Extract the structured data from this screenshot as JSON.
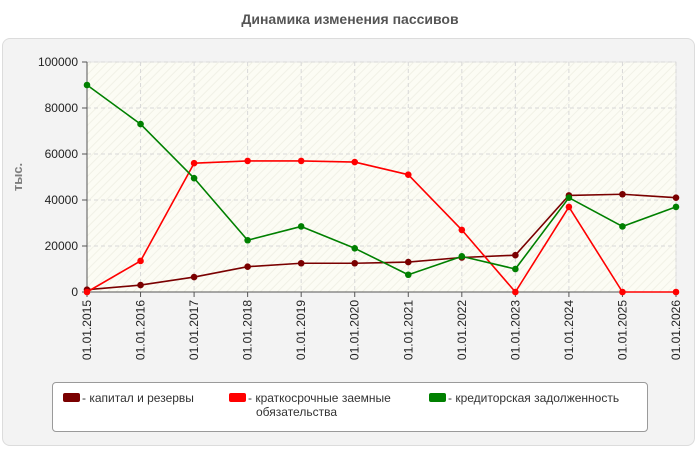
{
  "chart_data": {
    "type": "line",
    "title": "Динамика изменения пассивов",
    "ylabel": "тыс.",
    "xlabel": "",
    "ylim": [
      0,
      100000
    ],
    "yticks": [
      "0",
      "20000",
      "40000",
      "60000",
      "80000",
      "100000"
    ],
    "grid": true,
    "legend_position": "bottom",
    "categories": [
      "01.01.2015",
      "01.01.2016",
      "01.01.2017",
      "01.01.2018",
      "01.01.2019",
      "01.01.2020",
      "01.01.2021",
      "01.01.2022",
      "01.01.2023",
      "01.01.2024",
      "01.01.2025",
      "01.01.2026"
    ],
    "series": [
      {
        "name": "капитал и резервы",
        "color": "#7a0000",
        "values": [
          1000,
          3000,
          6500,
          11000,
          12500,
          12500,
          13000,
          15000,
          16000,
          42000,
          42500,
          41000
        ]
      },
      {
        "name": "краткосрочные заемные обязательства",
        "color": "#ff0000",
        "values": [
          0,
          13500,
          56000,
          57000,
          57000,
          56500,
          51000,
          27000,
          0,
          37000,
          0,
          0
        ]
      },
      {
        "name": "кредиторская задолженность",
        "color": "#008000",
        "values": [
          90000,
          73000,
          49500,
          22500,
          28500,
          19000,
          7500,
          15500,
          10000,
          41000,
          28500,
          37000
        ]
      }
    ]
  },
  "legend": {
    "item0": "- капитал и резервы",
    "item1_line1": "- краткосрочные заемные",
    "item1_line2": "обязательства",
    "item2": "- кредиторская задолженность"
  }
}
